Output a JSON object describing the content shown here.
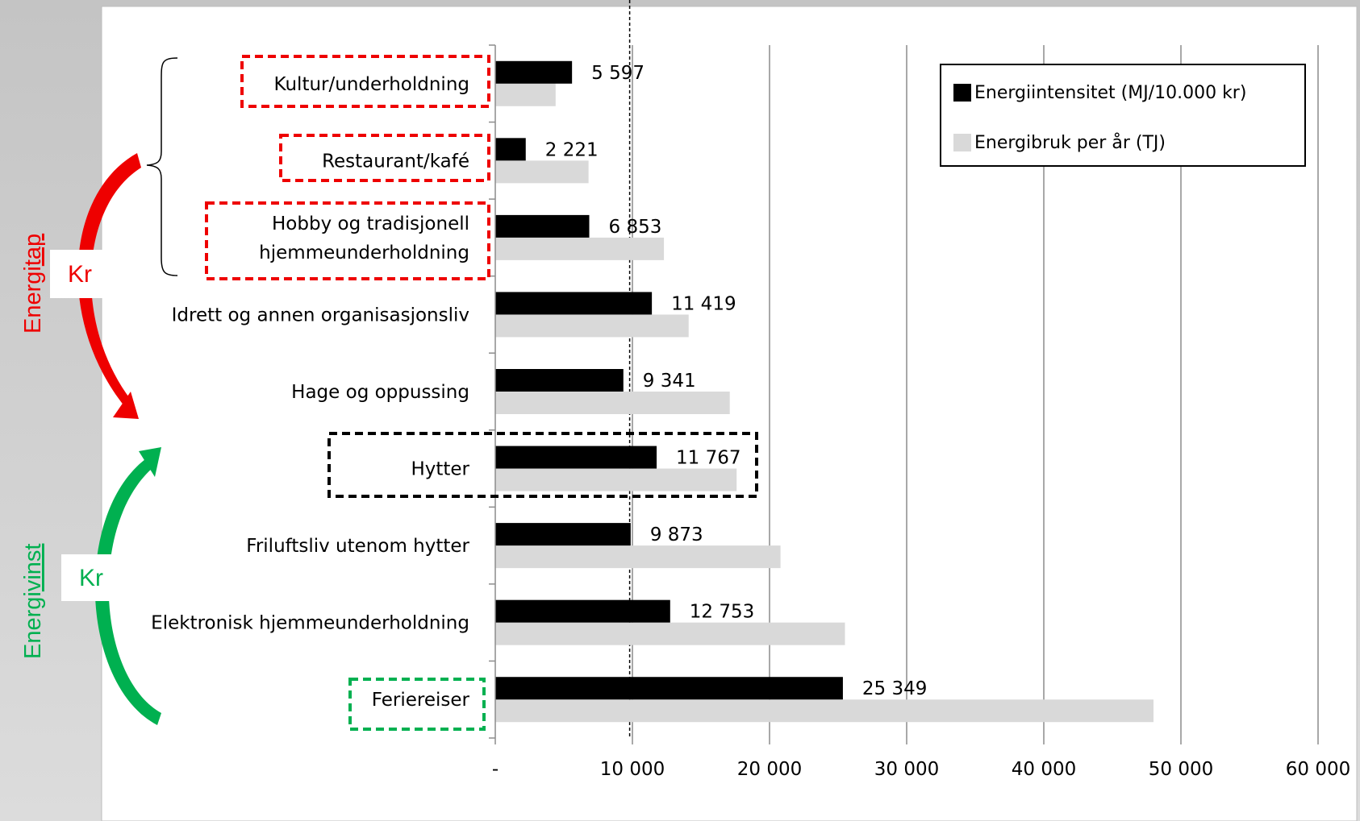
{
  "chart_data": {
    "type": "bar",
    "orientation": "horizontal",
    "categories": [
      "Kultur/underholdning",
      "Restaurant/kafé",
      "Hobby og tradisjonell hjemmeunderholdning",
      "Idrett og annen organisasjonsliv",
      "Hage og oppussing",
      "Hytter",
      "Friluftsliv utenom hytter",
      "Elektronisk hjemmeunderholdning",
      "Feriereiser"
    ],
    "category_lines": [
      [
        "Kultur/underholdning"
      ],
      [
        "Restaurant/kafé"
      ],
      [
        "Hobby og tradisjonell",
        "hjemmeunderholdning"
      ],
      [
        "Idrett og annen organisasjonsliv"
      ],
      [
        "Hage og oppussing"
      ],
      [
        "Hytter"
      ],
      [
        "Friluftsliv utenom hytter"
      ],
      [
        "Elektronisk hjemmeunderholdning"
      ],
      [
        "Feriereiser"
      ]
    ],
    "series": [
      {
        "name": "Energiintensitet (MJ/10.000 kr)",
        "color": "#000000",
        "values": [
          5597,
          2221,
          6853,
          11419,
          9341,
          11767,
          9873,
          12753,
          25349
        ],
        "data_labels": [
          "5 597",
          "2 221",
          "6 853",
          "11 419",
          "9 341",
          "11 767",
          "9 873",
          "12 753",
          "25 349"
        ]
      },
      {
        "name": "Energibruk per år (TJ)",
        "color": "#d9d9d9",
        "values": [
          4400,
          6800,
          12300,
          14100,
          17100,
          17600,
          20800,
          25500,
          48000
        ]
      }
    ],
    "xlim": [
      0,
      60000
    ],
    "xticks": [
      0,
      10000,
      20000,
      30000,
      40000,
      50000,
      60000
    ],
    "xtick_labels": [
      "-",
      "10 000",
      "20 000",
      "30 000",
      "40 000",
      "50 000",
      "60 000"
    ],
    "reference_line": 9800,
    "grid": "vertical",
    "legend_position": "top-right",
    "highlighted_red": [
      0,
      1,
      2
    ],
    "highlighted_black": [
      5
    ],
    "highlighted_green": [
      8
    ]
  },
  "annotations": {
    "loss_label_prefix": "Energi",
    "loss_label_underlined": "tap",
    "gain_label_prefix": "Energi",
    "gain_label_underlined": "vinst",
    "kr_top": "Kr",
    "kr_bottom": "Kr"
  },
  "colors": {
    "background": "#d3d3d3",
    "plot_area": "#ffffff",
    "loss_red": "#ee0000",
    "gain_green": "#00b050",
    "black_highlight": "#000000",
    "gridline": "#8c8c8c"
  }
}
